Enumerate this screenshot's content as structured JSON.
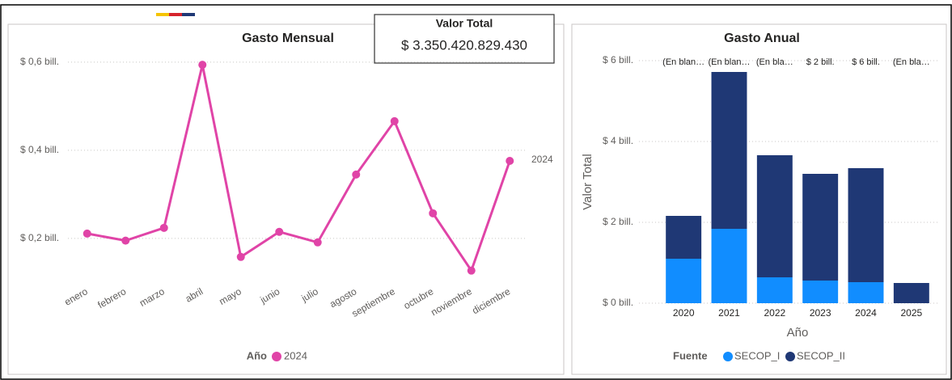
{
  "card": {
    "title": "Valor Total",
    "value": "$ 3.350.420.829.430"
  },
  "chart_data": [
    {
      "type": "line",
      "title": "Gasto Mensual",
      "categories": [
        "enero",
        "febrero",
        "marzo",
        "abril",
        "mayo",
        "junio",
        "julio",
        "agosto",
        "septiembre",
        "octubre",
        "noviembre",
        "diciembre"
      ],
      "series": [
        {
          "name": "2024",
          "color": "#e044a7",
          "values": [
            0.211,
            0.195,
            0.224,
            0.594,
            0.158,
            0.215,
            0.191,
            0.345,
            0.466,
            0.257,
            0.127,
            0.376
          ]
        }
      ],
      "legend_title": "Año",
      "ylim": [
        0.1,
        0.62
      ],
      "yticks": [
        {
          "value": 0.2,
          "label": "$ 0,2 bill."
        },
        {
          "value": 0.4,
          "label": "$ 0,4 bill."
        },
        {
          "value": 0.6,
          "label": "$ 0,6 bill."
        }
      ],
      "grid": true
    },
    {
      "type": "stacked_bar",
      "title": "Gasto Anual",
      "categories": [
        "2020",
        "2021",
        "2022",
        "2023",
        "2024",
        "2025"
      ],
      "series": [
        {
          "name": "SECOP_I",
          "color": "#118dff",
          "values": [
            1.1,
            1.84,
            0.64,
            0.56,
            0.52,
            null
          ]
        },
        {
          "name": "SECOP_II",
          "color": "#1f3875",
          "values": [
            1.06,
            3.88,
            3.02,
            2.64,
            2.82,
            0.5
          ]
        }
      ],
      "annotations": [
        "(En blan…",
        "(En blan…",
        "(En bla…",
        "$ 2 bill.",
        "$ 6 bill.",
        "(En bla…"
      ],
      "ylabel": "Valor Total",
      "xlabel": "Año",
      "legend_title": "Fuente",
      "ylim": [
        0,
        6
      ],
      "yticks": [
        {
          "value": 0,
          "label": "$ 0 bill."
        },
        {
          "value": 2,
          "label": "$ 2 bill."
        },
        {
          "value": 4,
          "label": "$ 4 bill."
        },
        {
          "value": 6,
          "label": "$ 6 bill."
        }
      ],
      "grid": true
    }
  ]
}
